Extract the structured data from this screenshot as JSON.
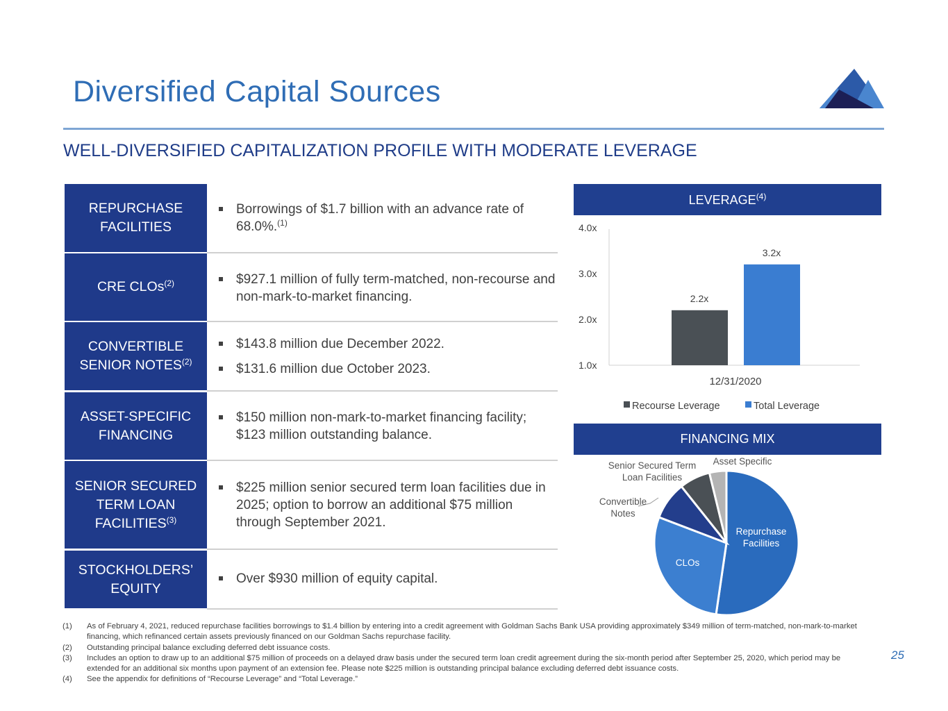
{
  "title": "Diversified Capital Sources",
  "subtitle": "WELL-DIVERSIFIED CAPITALIZATION PROFILE WITH MODERATE LEVERAGE",
  "colors": {
    "title": "#2f6db5",
    "label_bg": "#1f3a8a",
    "header_bg": "#203f8f"
  },
  "logo": "mountain-logo",
  "rows": [
    {
      "label": "REPURCHASE FACILITIES",
      "sup": "",
      "bullets": [
        {
          "text": "Borrowings of $1.7 billion with an advance rate of 68.0%.",
          "sup": "(1)"
        }
      ]
    },
    {
      "label": "CRE CLOs",
      "sup": "(2)",
      "bullets": [
        {
          "text": "$927.1 million of fully term-matched, non-recourse and non-mark-to-market financing.",
          "sup": ""
        }
      ]
    },
    {
      "label": "CONVERTIBLE SENIOR NOTES",
      "sup": "(2)",
      "bullets": [
        {
          "text": "$143.8 million due December 2022.",
          "sup": ""
        },
        {
          "text": "$131.6 million due October 2023.",
          "sup": ""
        }
      ]
    },
    {
      "label": "ASSET-SPECIFIC FINANCING",
      "sup": "",
      "bullets": [
        {
          "text": "$150 million non-mark-to-market financing facility; $123 million outstanding balance.",
          "sup": ""
        }
      ]
    },
    {
      "label": "SENIOR SECURED TERM LOAN FACILITIES",
      "sup": "(3)",
      "bullets": [
        {
          "text": "$225 million senior secured term loan facilities due in 2025; option to borrow an additional $75 million through September 2021.",
          "sup": ""
        }
      ]
    },
    {
      "label": "STOCKHOLDERS’ EQUITY",
      "sup": "",
      "bullets": [
        {
          "text": "Over $930 million of equity capital.",
          "sup": ""
        }
      ]
    }
  ],
  "leverage_header": "LEVERAGE",
  "leverage_header_sup": "(4)",
  "financing_header": "FINANCING MIX",
  "chart_data": [
    {
      "type": "bar",
      "categories": [
        "12/31/2020"
      ],
      "series": [
        {
          "name": "Recourse Leverage",
          "values": [
            2.2
          ],
          "color": "#4a5055",
          "label": "2.2x"
        },
        {
          "name": "Total Leverage",
          "values": [
            3.2
          ],
          "color": "#3a7dd1",
          "label": "3.2x"
        }
      ],
      "ylim": [
        1.0,
        4.0
      ],
      "ytick_labels": [
        "1.0x",
        "2.0x",
        "3.0x",
        "4.0x"
      ],
      "legend": "bottom",
      "grid": false
    },
    {
      "type": "pie",
      "labels": [
        "Repurchase Facilities",
        "CLOs",
        "Convertible Notes",
        "Senior Secured Term Loan Facilities",
        "Asset Specific"
      ],
      "values": [
        52.3,
        28.5,
        8.5,
        6.9,
        3.8
      ],
      "colors": [
        "#2a6bbd",
        "#3c7fd0",
        "#233e8c",
        "#4a5055",
        "#b4b4b4"
      ]
    }
  ],
  "footnotes": [
    {
      "n": "(1)",
      "text": "As of February 4, 2021, reduced repurchase facilities borrowings to $1.4 billion by entering into a credit agreement with Goldman Sachs Bank USA providing approximately $349 million of term-matched, non-mark-to-market financing, which refinanced certain assets previously financed on our Goldman Sachs repurchase facility."
    },
    {
      "n": "(2)",
      "text": "Outstanding principal balance excluding deferred debt issuance costs."
    },
    {
      "n": "(3)",
      "text": "Includes an option to draw up to an additional $75 million of proceeds on a delayed draw basis under the secured term loan credit agreement during the six-month period after September 25, 2020, which period may be extended for an additional six months upon payment of an extension fee. Please note $225 million is outstanding principal balance excluding deferred debt issuance costs."
    },
    {
      "n": "(4)",
      "text": "See the appendix for definitions of “Recourse Leverage” and “Total Leverage.”"
    }
  ],
  "page_number": "25"
}
